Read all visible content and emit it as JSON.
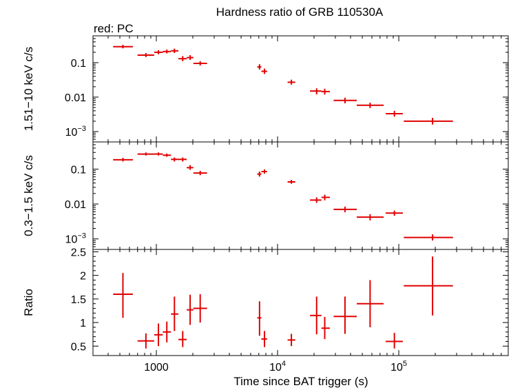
{
  "chart_data": {
    "type": "scatter",
    "title": "Hardness ratio of GRB 110530A",
    "subtitle": "red: PC",
    "xlabel": "Time since BAT trigger (s)",
    "xscale": "log",
    "xlim": [
      300,
      800000
    ],
    "x_ticks": [
      {
        "value": 1000,
        "base": "1000",
        "exp": ""
      },
      {
        "value": 10000,
        "base": "10",
        "exp": "4"
      },
      {
        "value": 100000,
        "base": "10",
        "exp": "5"
      }
    ],
    "series_color": "#e00000",
    "panels": [
      {
        "ylabel": "1.51−10 keV c/s",
        "yscale": "log",
        "ylim": [
          0.0005,
          0.6
        ],
        "y_ticks": [
          {
            "value": 0.1,
            "base": "0.1",
            "exp": ""
          },
          {
            "value": 0.01,
            "base": "0.01",
            "exp": ""
          },
          {
            "value": 0.001,
            "base": "10",
            "exp": "−3"
          }
        ],
        "points": [
          {
            "x": 530,
            "xlo": 440,
            "xhi": 640,
            "y": 0.29,
            "ylo": 0.26,
            "yhi": 0.33
          },
          {
            "x": 820,
            "xlo": 700,
            "xhi": 960,
            "y": 0.165,
            "ylo": 0.145,
            "yhi": 0.19
          },
          {
            "x": 1040,
            "xlo": 960,
            "xhi": 1130,
            "y": 0.2,
            "ylo": 0.175,
            "yhi": 0.23
          },
          {
            "x": 1220,
            "xlo": 1130,
            "xhi": 1320,
            "y": 0.21,
            "ylo": 0.185,
            "yhi": 0.24
          },
          {
            "x": 1410,
            "xlo": 1320,
            "xhi": 1520,
            "y": 0.22,
            "ylo": 0.19,
            "yhi": 0.255
          },
          {
            "x": 1650,
            "xlo": 1520,
            "xhi": 1780,
            "y": 0.13,
            "ylo": 0.11,
            "yhi": 0.155
          },
          {
            "x": 1900,
            "xlo": 1780,
            "xhi": 2020,
            "y": 0.14,
            "ylo": 0.12,
            "yhi": 0.165
          },
          {
            "x": 2300,
            "xlo": 2020,
            "xhi": 2620,
            "y": 0.095,
            "ylo": 0.083,
            "yhi": 0.11
          },
          {
            "x": 7100,
            "xlo": 6800,
            "xhi": 7350,
            "y": 0.075,
            "ylo": 0.063,
            "yhi": 0.09
          },
          {
            "x": 7800,
            "xlo": 7350,
            "xhi": 8200,
            "y": 0.056,
            "ylo": 0.047,
            "yhi": 0.067
          },
          {
            "x": 13000,
            "xlo": 12100,
            "xhi": 14000,
            "y": 0.027,
            "ylo": 0.023,
            "yhi": 0.032
          },
          {
            "x": 21000,
            "xlo": 18500,
            "xhi": 23000,
            "y": 0.015,
            "ylo": 0.012,
            "yhi": 0.018
          },
          {
            "x": 24500,
            "xlo": 23000,
            "xhi": 27000,
            "y": 0.0145,
            "ylo": 0.0118,
            "yhi": 0.0175
          },
          {
            "x": 36000,
            "xlo": 29000,
            "xhi": 45000,
            "y": 0.008,
            "ylo": 0.0066,
            "yhi": 0.0096
          },
          {
            "x": 58000,
            "xlo": 45000,
            "xhi": 75000,
            "y": 0.0058,
            "ylo": 0.0048,
            "yhi": 0.0069
          },
          {
            "x": 92000,
            "xlo": 78000,
            "xhi": 108000,
            "y": 0.0033,
            "ylo": 0.0027,
            "yhi": 0.004
          },
          {
            "x": 190000,
            "xlo": 110000,
            "xhi": 280000,
            "y": 0.002,
            "ylo": 0.0016,
            "yhi": 0.0025
          }
        ]
      },
      {
        "ylabel": "0.3−1.5 keV c/s",
        "yscale": "log",
        "ylim": [
          0.0005,
          0.6
        ],
        "y_ticks": [
          {
            "value": 0.1,
            "base": "0.1",
            "exp": ""
          },
          {
            "value": 0.01,
            "base": "0.01",
            "exp": ""
          },
          {
            "value": 0.001,
            "base": "10",
            "exp": "−3"
          }
        ],
        "points": [
          {
            "x": 530,
            "xlo": 440,
            "xhi": 640,
            "y": 0.185,
            "ylo": 0.165,
            "yhi": 0.21
          },
          {
            "x": 820,
            "xlo": 700,
            "xhi": 960,
            "y": 0.27,
            "ylo": 0.245,
            "yhi": 0.3
          },
          {
            "x": 1040,
            "xlo": 960,
            "xhi": 1130,
            "y": 0.27,
            "ylo": 0.245,
            "yhi": 0.3
          },
          {
            "x": 1220,
            "xlo": 1130,
            "xhi": 1320,
            "y": 0.25,
            "ylo": 0.225,
            "yhi": 0.28
          },
          {
            "x": 1410,
            "xlo": 1320,
            "xhi": 1520,
            "y": 0.19,
            "ylo": 0.165,
            "yhi": 0.215
          },
          {
            "x": 1650,
            "xlo": 1520,
            "xhi": 1780,
            "y": 0.19,
            "ylo": 0.165,
            "yhi": 0.215
          },
          {
            "x": 1900,
            "xlo": 1780,
            "xhi": 2020,
            "y": 0.11,
            "ylo": 0.095,
            "yhi": 0.13
          },
          {
            "x": 2300,
            "xlo": 2020,
            "xhi": 2620,
            "y": 0.077,
            "ylo": 0.067,
            "yhi": 0.089
          },
          {
            "x": 7100,
            "xlo": 6800,
            "xhi": 7350,
            "y": 0.072,
            "ylo": 0.061,
            "yhi": 0.085
          },
          {
            "x": 7800,
            "xlo": 7350,
            "xhi": 8200,
            "y": 0.085,
            "ylo": 0.074,
            "yhi": 0.098
          },
          {
            "x": 13000,
            "xlo": 12100,
            "xhi": 14000,
            "y": 0.043,
            "ylo": 0.038,
            "yhi": 0.049
          },
          {
            "x": 21000,
            "xlo": 18500,
            "xhi": 23000,
            "y": 0.013,
            "ylo": 0.0108,
            "yhi": 0.0155
          },
          {
            "x": 24500,
            "xlo": 23000,
            "xhi": 27000,
            "y": 0.0155,
            "ylo": 0.0128,
            "yhi": 0.0185
          },
          {
            "x": 36000,
            "xlo": 29000,
            "xhi": 45000,
            "y": 0.007,
            "ylo": 0.0058,
            "yhi": 0.0084
          },
          {
            "x": 58000,
            "xlo": 45000,
            "xhi": 75000,
            "y": 0.0042,
            "ylo": 0.0034,
            "yhi": 0.0051
          },
          {
            "x": 92000,
            "xlo": 78000,
            "xhi": 108000,
            "y": 0.0055,
            "ylo": 0.0046,
            "yhi": 0.0065
          },
          {
            "x": 190000,
            "xlo": 110000,
            "xhi": 280000,
            "y": 0.0011,
            "ylo": 0.0009,
            "yhi": 0.00135
          }
        ]
      },
      {
        "ylabel": "Ratio",
        "yscale": "linear",
        "ylim": [
          0.3,
          2.55
        ],
        "y_ticks": [
          {
            "value": 0.5,
            "base": "0.5",
            "exp": ""
          },
          {
            "value": 1,
            "base": "1",
            "exp": ""
          },
          {
            "value": 1.5,
            "base": "1.5",
            "exp": ""
          },
          {
            "value": 2,
            "base": "2",
            "exp": ""
          },
          {
            "value": 2.5,
            "base": "2.5",
            "exp": ""
          }
        ],
        "points": [
          {
            "x": 530,
            "xlo": 440,
            "xhi": 640,
            "y": 1.6,
            "ylo": 1.1,
            "yhi": 2.05
          },
          {
            "x": 820,
            "xlo": 700,
            "xhi": 960,
            "y": 0.61,
            "ylo": 0.45,
            "yhi": 0.77
          },
          {
            "x": 1040,
            "xlo": 960,
            "xhi": 1130,
            "y": 0.74,
            "ylo": 0.5,
            "yhi": 0.98
          },
          {
            "x": 1220,
            "xlo": 1130,
            "xhi": 1320,
            "y": 0.8,
            "ylo": 0.58,
            "yhi": 1.02
          },
          {
            "x": 1410,
            "xlo": 1320,
            "xhi": 1520,
            "y": 1.18,
            "ylo": 0.82,
            "yhi": 1.55
          },
          {
            "x": 1650,
            "xlo": 1520,
            "xhi": 1780,
            "y": 0.64,
            "ylo": 0.48,
            "yhi": 0.82
          },
          {
            "x": 1900,
            "xlo": 1780,
            "xhi": 2020,
            "y": 1.27,
            "ylo": 0.95,
            "yhi": 1.59
          },
          {
            "x": 2300,
            "xlo": 2020,
            "xhi": 2620,
            "y": 1.3,
            "ylo": 1.0,
            "yhi": 1.6
          },
          {
            "x": 7100,
            "xlo": 6800,
            "xhi": 7350,
            "y": 1.1,
            "ylo": 0.72,
            "yhi": 1.45
          },
          {
            "x": 7800,
            "xlo": 7350,
            "xhi": 8200,
            "y": 0.65,
            "ylo": 0.48,
            "yhi": 0.82
          },
          {
            "x": 13000,
            "xlo": 12100,
            "xhi": 14000,
            "y": 0.63,
            "ylo": 0.5,
            "yhi": 0.76
          },
          {
            "x": 21000,
            "xlo": 18500,
            "xhi": 23000,
            "y": 1.15,
            "ylo": 0.75,
            "yhi": 1.55
          },
          {
            "x": 24500,
            "xlo": 23000,
            "xhi": 27000,
            "y": 0.88,
            "ylo": 0.65,
            "yhi": 1.12
          },
          {
            "x": 36000,
            "xlo": 29000,
            "xhi": 45000,
            "y": 1.13,
            "ylo": 0.76,
            "yhi": 1.55
          },
          {
            "x": 58000,
            "xlo": 45000,
            "xhi": 75000,
            "y": 1.4,
            "ylo": 0.9,
            "yhi": 1.9
          },
          {
            "x": 92000,
            "xlo": 78000,
            "xhi": 108000,
            "y": 0.6,
            "ylo": 0.45,
            "yhi": 0.78
          },
          {
            "x": 190000,
            "xlo": 110000,
            "xhi": 280000,
            "y": 1.78,
            "ylo": 1.15,
            "yhi": 2.4
          }
        ]
      }
    ]
  }
}
